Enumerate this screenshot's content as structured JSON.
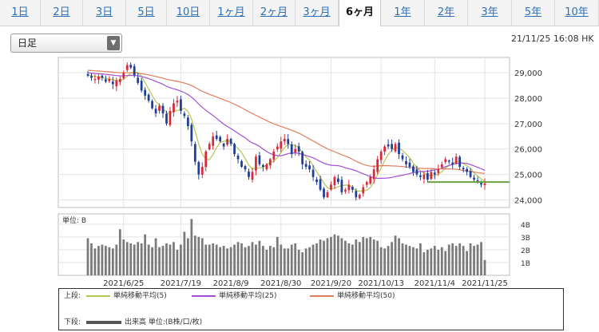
{
  "tabs": [
    {
      "label": "1日",
      "active": false
    },
    {
      "label": "2日",
      "active": false
    },
    {
      "label": "3日",
      "active": false
    },
    {
      "label": "5日",
      "active": false
    },
    {
      "label": "10日",
      "active": false
    },
    {
      "label": "1ヶ月",
      "active": false
    },
    {
      "label": "2ヶ月",
      "active": false
    },
    {
      "label": "3ヶ月",
      "active": false
    },
    {
      "label": "6ヶ月",
      "active": true
    },
    {
      "label": "1年",
      "active": false
    },
    {
      "label": "2年",
      "active": false
    },
    {
      "label": "3年",
      "active": false
    },
    {
      "label": "5年",
      "active": false
    },
    {
      "label": "10年",
      "active": false
    }
  ],
  "select": {
    "value": "日足",
    "arrow": "▼"
  },
  "timestamp": "21/11/25 16:08 HK",
  "chart_data": {
    "type": "candlestick",
    "price_axis": {
      "ticks": [
        24000,
        25000,
        26000,
        27000,
        28000,
        29000
      ],
      "tick_labels": [
        "24,000",
        "25,000",
        "26,000",
        "27,000",
        "28,000",
        "29,000"
      ],
      "range": [
        23700,
        29600
      ]
    },
    "volume_axis": {
      "label": "単位: B",
      "ticks": [
        1,
        2,
        3,
        4
      ],
      "tick_labels": [
        "1B",
        "2B",
        "3B",
        "4B"
      ],
      "range": [
        0,
        4.8
      ]
    },
    "x_tick_labels": [
      "2021/6/25",
      "2021/7/19",
      "2021/8/9",
      "2021/8/30",
      "2021/9/20",
      "2021/10/13",
      "2021/11/4",
      "2021/11/25"
    ],
    "x_tick_index": [
      10,
      26,
      40,
      54,
      68,
      82,
      97,
      111
    ],
    "up_color": "#d8293a",
    "down_color": "#1e3f94",
    "ma_colors": {
      "ma5": "#b4c850",
      "ma25": "#a24fd6",
      "ma50": "#e07f5a"
    },
    "ma_periods": [
      5,
      25,
      50
    ],
    "reference_line": {
      "value": 24700,
      "color": "#6aa342"
    },
    "closes": [
      28880,
      28800,
      28750,
      28850,
      28800,
      28650,
      28750,
      28550,
      28700,
      28750,
      29000,
      29300,
      29200,
      28900,
      28600,
      28300,
      28100,
      27900,
      27600,
      27400,
      27700,
      27400,
      27000,
      27500,
      27800,
      27900,
      27500,
      27300,
      26900,
      26300,
      25500,
      25000,
      25300,
      25900,
      26200,
      26500,
      26400,
      26300,
      26100,
      26400,
      26200,
      25800,
      25600,
      25300,
      25200,
      24900,
      25100,
      25700,
      25400,
      25300,
      25400,
      25600,
      25900,
      26100,
      26300,
      26400,
      26200,
      25800,
      26000,
      25900,
      25400,
      25300,
      25200,
      24900,
      24700,
      24400,
      24100,
      24300,
      24600,
      24900,
      24700,
      24300,
      24400,
      24600,
      24400,
      24100,
      24200,
      24500,
      24700,
      24900,
      25200,
      25600,
      25900,
      26100,
      26100,
      26000,
      26200,
      25800,
      25600,
      25400,
      25300,
      25100,
      25000,
      24900,
      25000,
      24800,
      25100,
      25000,
      25200,
      25400,
      25600,
      25500,
      25400,
      25700,
      25300,
      25200,
      25100,
      24900,
      24800,
      24700,
      24600,
      24650
    ],
    "volumes": [
      2.9,
      2.5,
      2.1,
      2.3,
      2.4,
      2.3,
      2.2,
      2.1,
      2.4,
      3.6,
      2.8,
      2.6,
      2.5,
      2.4,
      2.6,
      2.5,
      3.2,
      2.4,
      2.2,
      2.9,
      2.2,
      2.3,
      2.5,
      2.4,
      2.6,
      2.0,
      2.4,
      3.4,
      2.9,
      4.4,
      3.1,
      3.0,
      2.9,
      2.4,
      2.4,
      2.5,
      2.4,
      2.2,
      2.3,
      2.1,
      2.2,
      2.4,
      2.6,
      2.5,
      2.2,
      2.3,
      2.6,
      2.4,
      2.7,
      2.3,
      2.0,
      2.3,
      2.2,
      3.0,
      2.4,
      2.1,
      2.1,
      2.4,
      2.5,
      2.0,
      1.8,
      2.1,
      2.2,
      2.4,
      2.5,
      2.8,
      2.7,
      2.9,
      3.0,
      3.2,
      3.1,
      2.9,
      2.7,
      2.5,
      2.4,
      2.8,
      2.6,
      3.0,
      2.9,
      3.0,
      2.8,
      2.7,
      2.2,
      2.1,
      2.3,
      2.6,
      3.1,
      2.9,
      2.5,
      2.4,
      2.3,
      2.2,
      2.1,
      2.5,
      1.8,
      2.0,
      2.1,
      2.3,
      2.0,
      2.2,
      1.9,
      2.4,
      2.5,
      2.3,
      2.5,
      2.3,
      1.9,
      2.5,
      2.3,
      2.4,
      2.6,
      1.2
    ]
  },
  "legend": {
    "upper_label": "上段:",
    "lower_label": "下段:",
    "ma5_label": "単純移動平均(5)",
    "ma25_label": "単純移動平均(25)",
    "ma50_label": "単純移動平均(50)",
    "volume_label": "出来高 単位:(B株/口/枚)"
  }
}
